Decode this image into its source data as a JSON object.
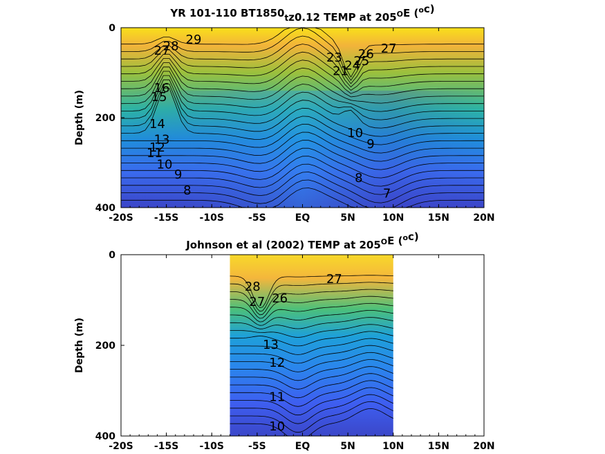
{
  "chart_data": [
    {
      "type": "heatmap",
      "title_main": "YR 101-110 BT1850",
      "title_sub": "t",
      "title_rest": "z0.12 TEMP at 205",
      "title_deg": "O",
      "title_unit_pre": "E (",
      "title_unit_sup": "o",
      "title_unit_post": "c)",
      "xlabel": "",
      "ylabel": "Depth (m)",
      "xlim": [
        -20,
        20
      ],
      "ylim": [
        400,
        0
      ],
      "x_ticks": [
        -20,
        -15,
        -10,
        -5,
        0,
        5,
        10,
        15,
        20
      ],
      "x_tick_labels": [
        "-20S",
        "-15S",
        "-10S",
        "-5S",
        "EQ",
        "5N",
        "10N",
        "15N",
        "20N"
      ],
      "y_ticks": [
        0,
        200,
        400
      ],
      "y_tick_labels": [
        "0",
        "200",
        "400"
      ],
      "data_extent": [
        -20,
        20
      ],
      "colormap": "parula",
      "contour_labels": [
        {
          "text": "29",
          "x": -12,
          "y": 28
        },
        {
          "text": "28",
          "x": -14.5,
          "y": 42
        },
        {
          "text": "27",
          "x": -15.5,
          "y": 52
        },
        {
          "text": "27",
          "x": 9.5,
          "y": 48
        },
        {
          "text": "26",
          "x": 7,
          "y": 60
        },
        {
          "text": "25",
          "x": 6.5,
          "y": 75
        },
        {
          "text": "24",
          "x": 5.5,
          "y": 85
        },
        {
          "text": "23",
          "x": 3.5,
          "y": 68
        },
        {
          "text": "21",
          "x": 4.2,
          "y": 98
        },
        {
          "text": "16",
          "x": -15.5,
          "y": 135
        },
        {
          "text": "15",
          "x": -15.8,
          "y": 155
        },
        {
          "text": "14",
          "x": -16,
          "y": 215
        },
        {
          "text": "13",
          "x": -15.5,
          "y": 250
        },
        {
          "text": "12",
          "x": -16,
          "y": 268
        },
        {
          "text": "11",
          "x": -16.3,
          "y": 280
        },
        {
          "text": "10",
          "x": -15.2,
          "y": 305
        },
        {
          "text": "9",
          "x": -13.7,
          "y": 328
        },
        {
          "text": "8",
          "x": -12.7,
          "y": 363
        },
        {
          "text": "10",
          "x": 5.8,
          "y": 235
        },
        {
          "text": "9",
          "x": 7.5,
          "y": 260
        },
        {
          "text": "8",
          "x": 6.2,
          "y": 335
        },
        {
          "text": "7",
          "x": 9.3,
          "y": 370
        }
      ]
    },
    {
      "type": "heatmap",
      "title_main": "Johnson et al (2002) TEMP at 205",
      "title_deg": "O",
      "title_unit_pre": "E (",
      "title_unit_sup": "o",
      "title_unit_post": "c)",
      "xlabel": "",
      "ylabel": "Depth (m)",
      "xlim": [
        -20,
        20
      ],
      "ylim": [
        400,
        0
      ],
      "x_ticks": [
        -20,
        -15,
        -10,
        -5,
        0,
        5,
        10,
        15,
        20
      ],
      "x_tick_labels": [
        "-20S",
        "-15S",
        "-10S",
        "-5S",
        "EQ",
        "5N",
        "10N",
        "15N",
        "20N"
      ],
      "y_ticks": [
        0,
        200,
        400
      ],
      "y_tick_labels": [
        "0",
        "200",
        "400"
      ],
      "data_extent": [
        -8,
        10
      ],
      "colormap": "parula",
      "contour_labels": [
        {
          "text": "28",
          "x": -5.5,
          "y": 72
        },
        {
          "text": "27",
          "x": 3.5,
          "y": 55
        },
        {
          "text": "27",
          "x": -5,
          "y": 105
        },
        {
          "text": "26",
          "x": -2.5,
          "y": 98
        },
        {
          "text": "13",
          "x": -3.5,
          "y": 200
        },
        {
          "text": "12",
          "x": -2.8,
          "y": 240
        },
        {
          "text": "11",
          "x": -2.8,
          "y": 315
        },
        {
          "text": "10",
          "x": -2.8,
          "y": 380
        }
      ]
    }
  ]
}
